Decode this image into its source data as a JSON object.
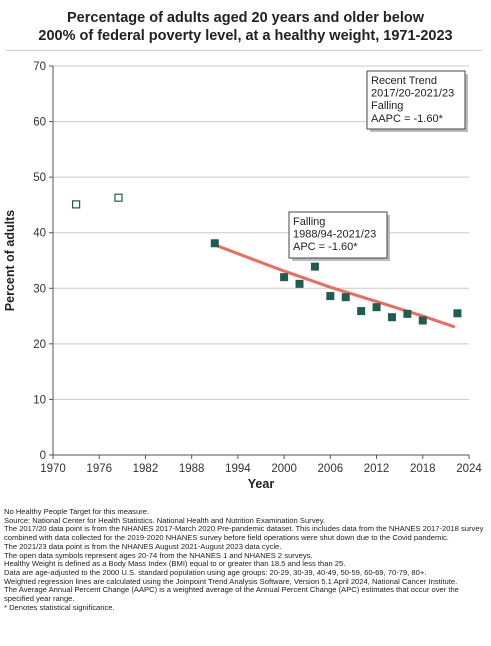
{
  "title": {
    "line1": "Percentage of adults aged 20 years and older below",
    "line2": "200% of federal poverty level, at a healthy weight, 1971-2023"
  },
  "chart_data": {
    "type": "scatter",
    "xlabel": "Year",
    "ylabel": "Percent of adults",
    "xlim": [
      1970,
      2024
    ],
    "ylim": [
      0,
      70
    ],
    "xticks": [
      1970,
      1976,
      1982,
      1988,
      1994,
      2000,
      2006,
      2012,
      2018,
      2024
    ],
    "yticks": [
      0,
      10,
      20,
      30,
      40,
      50,
      60,
      70
    ],
    "grid": "horizontal",
    "open_points": [
      {
        "x": 1973,
        "y": 45.1
      },
      {
        "x": 1978.5,
        "y": 46.3
      }
    ],
    "filled_points": [
      {
        "x": 1991,
        "y": 38.1
      },
      {
        "x": 2000,
        "y": 32.0
      },
      {
        "x": 2002,
        "y": 30.8
      },
      {
        "x": 2004,
        "y": 33.9
      },
      {
        "x": 2006,
        "y": 28.6
      },
      {
        "x": 2008,
        "y": 28.4
      },
      {
        "x": 2010,
        "y": 25.9
      },
      {
        "x": 2012,
        "y": 26.6
      },
      {
        "x": 2014,
        "y": 24.8
      },
      {
        "x": 2016,
        "y": 25.4
      },
      {
        "x": 2018,
        "y": 24.2
      },
      {
        "x": 2022.5,
        "y": 25.5
      }
    ],
    "trend_line": {
      "color": "#f06a5e",
      "points": [
        {
          "x": 1991,
          "y": 37.8
        },
        {
          "x": 2000,
          "y": 33.1
        },
        {
          "x": 2006,
          "y": 30.2
        },
        {
          "x": 2012,
          "y": 27.6
        },
        {
          "x": 2018,
          "y": 25.0
        },
        {
          "x": 2022,
          "y": 23.1
        }
      ]
    },
    "colors": {
      "marker": "#1f5c52",
      "grid": "#c8c8c8",
      "trend": "#f06a5e"
    },
    "annotations": [
      {
        "id": "segment",
        "lines": [
          "Falling",
          "1988/94-2021/23",
          "APC = -1.60*"
        ]
      },
      {
        "id": "recent",
        "lines": [
          "Recent Trend",
          "2017/20-2021/23",
          "Falling",
          "AAPC = -1.60*"
        ]
      }
    ]
  },
  "notes": [
    "No Healthy People Target for this measure.",
    "Source: National Center for Health Statistics. National Health and Nutrition Examination Survey.",
    "The 2017/20 data point is from the NHANES 2017-March 2020 Pre-pandemic dataset. This includes data from the NHANES 2017-2018 survey combined with data collected for the 2019-2020 NHANES survey before field operations were shut down due to the Covid pandemic.",
    "The 2021/23 data point is from the NHANES August 2021-August 2023 data cycle.",
    "The open data symbols represent ages 20-74 from the NHANES 1 and NHANES 2 surveys.",
    "Healthy Weight is defined as a Body Mass Index (BMI) equal to or greater than 18.5 and less than 25.",
    "Data are age-adjusted to the 2000 U.S. standard population using age groups: 20-29, 30-39, 40-49, 50-59, 60-69, 70-79, 80+.",
    "Weighted regression lines are calculated using the Joinpoint Trend Analysis Software, Version 5.1 April 2024, National Cancer Institute.",
    "The Average Annual Percent Change (AAPC) is a weighted average of the Annual Percent Change (APC) estimates that occur over the specified year range.",
    "* Denotes statistical significance."
  ]
}
